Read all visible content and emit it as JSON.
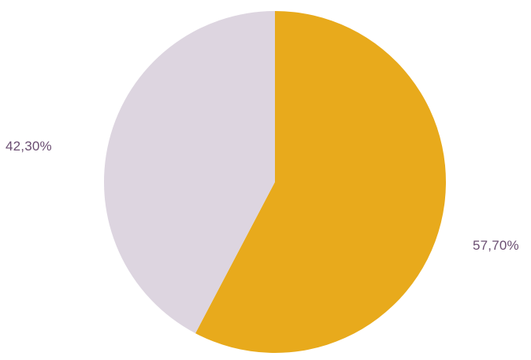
{
  "chart_data": {
    "type": "pie",
    "title": "",
    "slices": [
      {
        "label": "57,70%",
        "value": 57.7,
        "color": "#e8aa1c"
      },
      {
        "label": "42,30%",
        "value": 42.3,
        "color": "#ddd5e0"
      }
    ],
    "start_angle_deg": 0,
    "direction": "clockwise",
    "legend": "none"
  }
}
